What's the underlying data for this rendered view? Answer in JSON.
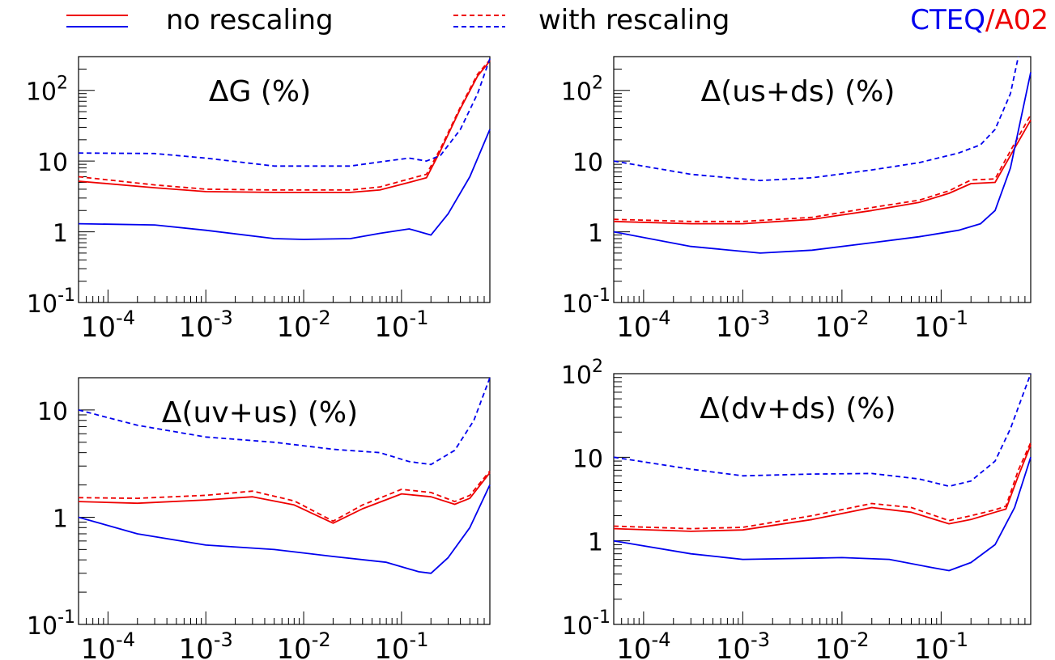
{
  "legend": {
    "solid_label": "no rescaling",
    "dashed_label": "with rescaling",
    "cteq_label": "CTEQ",
    "slash": "/",
    "a02_label": "A02"
  },
  "colors": {
    "cteq": "#0000ee",
    "a02": "#ee0000",
    "axis": "#000000"
  },
  "chart_data": [
    {
      "type": "line",
      "title": "ΔG (%)",
      "x_scale": "log",
      "y_scale": "log",
      "xlim": [
        5e-05,
        0.8
      ],
      "ylim": [
        0.1,
        300
      ],
      "x_ticks": [
        {
          "value": 0.0001,
          "base": "10",
          "exp": "-4"
        },
        {
          "value": 0.001,
          "base": "10",
          "exp": "-3"
        },
        {
          "value": 0.01,
          "base": "10",
          "exp": "-2"
        },
        {
          "value": 0.1,
          "base": "10",
          "exp": "-1"
        }
      ],
      "y_ticks": [
        {
          "value": 0.1,
          "base": "10",
          "exp": "-1"
        },
        {
          "value": 1,
          "base": "1",
          "exp": ""
        },
        {
          "value": 10,
          "base": "10",
          "exp": ""
        },
        {
          "value": 100,
          "base": "10",
          "exp": "2"
        }
      ],
      "series": [
        {
          "color": "red",
          "dashed": false,
          "points": [
            [
              5e-05,
              5.2
            ],
            [
              0.0003,
              4.2
            ],
            [
              0.001,
              3.7
            ],
            [
              0.005,
              3.6
            ],
            [
              0.03,
              3.6
            ],
            [
              0.06,
              3.9
            ],
            [
              0.12,
              5.0
            ],
            [
              0.18,
              5.8
            ],
            [
              0.25,
              14
            ],
            [
              0.4,
              55
            ],
            [
              0.6,
              160
            ],
            [
              0.8,
              260
            ]
          ]
        },
        {
          "color": "red",
          "dashed": true,
          "points": [
            [
              5e-05,
              6.0
            ],
            [
              0.0003,
              4.6
            ],
            [
              0.001,
              4.0
            ],
            [
              0.005,
              3.9
            ],
            [
              0.03,
              3.9
            ],
            [
              0.06,
              4.3
            ],
            [
              0.12,
              5.6
            ],
            [
              0.18,
              6.5
            ],
            [
              0.25,
              15
            ],
            [
              0.4,
              58
            ],
            [
              0.6,
              170
            ],
            [
              0.8,
              270
            ]
          ]
        },
        {
          "color": "blue",
          "dashed": false,
          "points": [
            [
              5e-05,
              1.3
            ],
            [
              0.0003,
              1.25
            ],
            [
              0.001,
              1.05
            ],
            [
              0.005,
              0.8
            ],
            [
              0.01,
              0.78
            ],
            [
              0.03,
              0.8
            ],
            [
              0.06,
              0.95
            ],
            [
              0.12,
              1.1
            ],
            [
              0.2,
              0.9
            ],
            [
              0.3,
              1.8
            ],
            [
              0.5,
              6
            ],
            [
              0.8,
              28
            ]
          ]
        },
        {
          "color": "blue",
          "dashed": true,
          "points": [
            [
              5e-05,
              13
            ],
            [
              0.0003,
              12.8
            ],
            [
              0.001,
              11
            ],
            [
              0.005,
              8.5
            ],
            [
              0.03,
              8.5
            ],
            [
              0.07,
              10
            ],
            [
              0.12,
              11
            ],
            [
              0.18,
              10
            ],
            [
              0.25,
              12
            ],
            [
              0.4,
              28
            ],
            [
              0.6,
              90
            ],
            [
              0.8,
              280
            ]
          ]
        }
      ]
    },
    {
      "type": "line",
      "title": "Δ(us+ds) (%)",
      "x_scale": "log",
      "y_scale": "log",
      "xlim": [
        5e-05,
        0.8
      ],
      "ylim": [
        0.1,
        300
      ],
      "x_ticks": [
        {
          "value": 0.0001,
          "base": "10",
          "exp": "-4"
        },
        {
          "value": 0.001,
          "base": "10",
          "exp": "-3"
        },
        {
          "value": 0.01,
          "base": "10",
          "exp": "-2"
        },
        {
          "value": 0.1,
          "base": "10",
          "exp": "-1"
        }
      ],
      "y_ticks": [
        {
          "value": 0.1,
          "base": "10",
          "exp": "-1"
        },
        {
          "value": 1,
          "base": "1",
          "exp": ""
        },
        {
          "value": 10,
          "base": "10",
          "exp": ""
        },
        {
          "value": 100,
          "base": "10",
          "exp": "2"
        }
      ],
      "series": [
        {
          "color": "red",
          "dashed": false,
          "points": [
            [
              5e-05,
              1.4
            ],
            [
              0.0003,
              1.3
            ],
            [
              0.001,
              1.3
            ],
            [
              0.005,
              1.5
            ],
            [
              0.02,
              2.0
            ],
            [
              0.06,
              2.6
            ],
            [
              0.12,
              3.5
            ],
            [
              0.2,
              4.8
            ],
            [
              0.35,
              5.0
            ],
            [
              0.5,
              12
            ],
            [
              0.8,
              38
            ]
          ]
        },
        {
          "color": "red",
          "dashed": true,
          "points": [
            [
              5e-05,
              1.5
            ],
            [
              0.0003,
              1.4
            ],
            [
              0.001,
              1.4
            ],
            [
              0.005,
              1.6
            ],
            [
              0.02,
              2.2
            ],
            [
              0.06,
              2.8
            ],
            [
              0.12,
              3.8
            ],
            [
              0.2,
              5.4
            ],
            [
              0.35,
              5.6
            ],
            [
              0.5,
              14
            ],
            [
              0.8,
              45
            ]
          ]
        },
        {
          "color": "blue",
          "dashed": false,
          "points": [
            [
              5e-05,
              1.0
            ],
            [
              0.0003,
              0.62
            ],
            [
              0.0015,
              0.5
            ],
            [
              0.005,
              0.55
            ],
            [
              0.02,
              0.7
            ],
            [
              0.06,
              0.85
            ],
            [
              0.15,
              1.05
            ],
            [
              0.25,
              1.3
            ],
            [
              0.35,
              2.0
            ],
            [
              0.5,
              8
            ],
            [
              0.8,
              180
            ]
          ]
        },
        {
          "color": "blue",
          "dashed": true,
          "points": [
            [
              5e-05,
              10
            ],
            [
              0.0003,
              6.5
            ],
            [
              0.0015,
              5.3
            ],
            [
              0.005,
              5.8
            ],
            [
              0.02,
              7.5
            ],
            [
              0.06,
              9.5
            ],
            [
              0.15,
              13
            ],
            [
              0.25,
              17
            ],
            [
              0.35,
              28
            ],
            [
              0.5,
              90
            ],
            [
              0.6,
              300
            ]
          ]
        }
      ]
    },
    {
      "type": "line",
      "title": "Δ(uv+us) (%)",
      "x_scale": "log",
      "y_scale": "log",
      "xlim": [
        5e-05,
        0.8
      ],
      "ylim": [
        0.1,
        20
      ],
      "x_ticks": [
        {
          "value": 0.0001,
          "base": "10",
          "exp": "-4"
        },
        {
          "value": 0.001,
          "base": "10",
          "exp": "-3"
        },
        {
          "value": 0.01,
          "base": "10",
          "exp": "-2"
        },
        {
          "value": 0.1,
          "base": "10",
          "exp": "-1"
        }
      ],
      "y_ticks": [
        {
          "value": 0.1,
          "base": "10",
          "exp": "-1"
        },
        {
          "value": 1,
          "base": "1",
          "exp": ""
        },
        {
          "value": 10,
          "base": "10",
          "exp": ""
        }
      ],
      "series": [
        {
          "color": "red",
          "dashed": false,
          "points": [
            [
              5e-05,
              1.4
            ],
            [
              0.0002,
              1.35
            ],
            [
              0.001,
              1.45
            ],
            [
              0.003,
              1.55
            ],
            [
              0.008,
              1.3
            ],
            [
              0.02,
              0.88
            ],
            [
              0.04,
              1.2
            ],
            [
              0.1,
              1.65
            ],
            [
              0.2,
              1.55
            ],
            [
              0.35,
              1.32
            ],
            [
              0.5,
              1.5
            ],
            [
              0.8,
              2.6
            ]
          ]
        },
        {
          "color": "red",
          "dashed": true,
          "points": [
            [
              5e-05,
              1.52
            ],
            [
              0.0002,
              1.5
            ],
            [
              0.001,
              1.6
            ],
            [
              0.003,
              1.75
            ],
            [
              0.008,
              1.42
            ],
            [
              0.02,
              0.92
            ],
            [
              0.04,
              1.3
            ],
            [
              0.1,
              1.82
            ],
            [
              0.2,
              1.7
            ],
            [
              0.35,
              1.4
            ],
            [
              0.5,
              1.6
            ],
            [
              0.8,
              2.7
            ]
          ]
        },
        {
          "color": "blue",
          "dashed": false,
          "points": [
            [
              5e-05,
              1.0
            ],
            [
              0.0002,
              0.7
            ],
            [
              0.001,
              0.55
            ],
            [
              0.005,
              0.5
            ],
            [
              0.02,
              0.43
            ],
            [
              0.07,
              0.38
            ],
            [
              0.15,
              0.31
            ],
            [
              0.2,
              0.3
            ],
            [
              0.3,
              0.42
            ],
            [
              0.5,
              0.8
            ],
            [
              0.8,
              2.0
            ]
          ]
        },
        {
          "color": "blue",
          "dashed": true,
          "points": [
            [
              5e-05,
              10
            ],
            [
              0.0002,
              7.2
            ],
            [
              0.001,
              5.6
            ],
            [
              0.005,
              5.0
            ],
            [
              0.02,
              4.3
            ],
            [
              0.06,
              4.0
            ],
            [
              0.12,
              3.3
            ],
            [
              0.2,
              3.1
            ],
            [
              0.35,
              4.2
            ],
            [
              0.55,
              8
            ],
            [
              0.8,
              20
            ]
          ]
        }
      ]
    },
    {
      "type": "line",
      "title": "Δ(dv+ds) (%)",
      "x_scale": "log",
      "y_scale": "log",
      "xlim": [
        5e-05,
        0.8
      ],
      "ylim": [
        0.1,
        100
      ],
      "x_ticks": [
        {
          "value": 0.0001,
          "base": "10",
          "exp": "-4"
        },
        {
          "value": 0.001,
          "base": "10",
          "exp": "-3"
        },
        {
          "value": 0.01,
          "base": "10",
          "exp": "-2"
        },
        {
          "value": 0.1,
          "base": "10",
          "exp": "-1"
        }
      ],
      "y_ticks": [
        {
          "value": 0.1,
          "base": "10",
          "exp": "-1"
        },
        {
          "value": 1,
          "base": "1",
          "exp": ""
        },
        {
          "value": 10,
          "base": "10",
          "exp": ""
        },
        {
          "value": 100,
          "base": "10",
          "exp": "2"
        }
      ],
      "series": [
        {
          "color": "red",
          "dashed": false,
          "points": [
            [
              5e-05,
              1.4
            ],
            [
              0.0003,
              1.3
            ],
            [
              0.001,
              1.35
            ],
            [
              0.005,
              1.8
            ],
            [
              0.02,
              2.5
            ],
            [
              0.05,
              2.2
            ],
            [
              0.12,
              1.6
            ],
            [
              0.2,
              1.8
            ],
            [
              0.35,
              2.2
            ],
            [
              0.45,
              2.4
            ],
            [
              0.6,
              6
            ],
            [
              0.8,
              14
            ]
          ]
        },
        {
          "color": "red",
          "dashed": true,
          "points": [
            [
              5e-05,
              1.5
            ],
            [
              0.0003,
              1.4
            ],
            [
              0.001,
              1.45
            ],
            [
              0.005,
              2.0
            ],
            [
              0.02,
              2.8
            ],
            [
              0.05,
              2.5
            ],
            [
              0.12,
              1.75
            ],
            [
              0.2,
              2.0
            ],
            [
              0.35,
              2.35
            ],
            [
              0.45,
              2.6
            ],
            [
              0.6,
              7
            ],
            [
              0.8,
              15
            ]
          ]
        },
        {
          "color": "blue",
          "dashed": false,
          "points": [
            [
              5e-05,
              1.0
            ],
            [
              0.0003,
              0.7
            ],
            [
              0.001,
              0.6
            ],
            [
              0.005,
              0.62
            ],
            [
              0.01,
              0.63
            ],
            [
              0.03,
              0.6
            ],
            [
              0.08,
              0.48
            ],
            [
              0.12,
              0.44
            ],
            [
              0.2,
              0.55
            ],
            [
              0.35,
              0.9
            ],
            [
              0.55,
              2.5
            ],
            [
              0.8,
              10
            ]
          ]
        },
        {
          "color": "blue",
          "dashed": true,
          "points": [
            [
              5e-05,
              10
            ],
            [
              0.0003,
              7.2
            ],
            [
              0.001,
              6.0
            ],
            [
              0.005,
              6.3
            ],
            [
              0.02,
              6.4
            ],
            [
              0.06,
              5.5
            ],
            [
              0.12,
              4.5
            ],
            [
              0.2,
              5.2
            ],
            [
              0.35,
              9
            ],
            [
              0.5,
              22
            ],
            [
              0.8,
              100
            ]
          ]
        }
      ]
    }
  ]
}
